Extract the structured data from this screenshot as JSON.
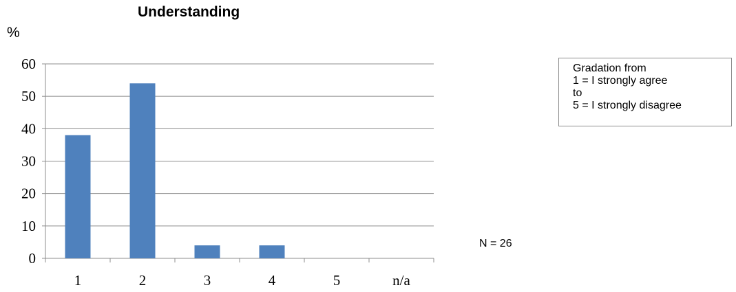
{
  "chart_data": {
    "type": "bar",
    "title": "Understanding",
    "ylabel": "%",
    "xlabel": "",
    "categories": [
      "1",
      "2",
      "3",
      "4",
      "5",
      "n/a"
    ],
    "values": [
      38,
      54,
      4,
      4,
      0,
      0
    ],
    "ylim": [
      0,
      60
    ],
    "yticks": [
      0,
      10,
      20,
      30,
      40,
      50,
      60
    ],
    "grid": true,
    "bar_color": "#4f81bd"
  },
  "legend": {
    "lines": [
      "Gradation from",
      "1 = I strongly agree",
      "to",
      "5 = I strongly disagree"
    ]
  },
  "note": "N = 26"
}
